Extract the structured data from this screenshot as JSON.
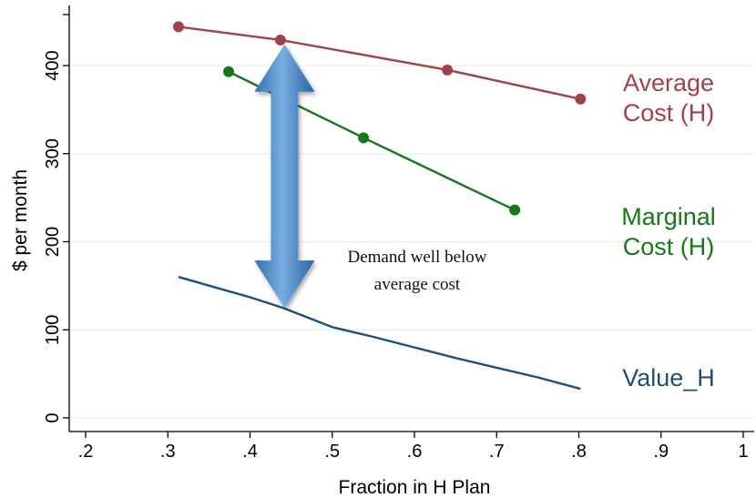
{
  "chart_data": {
    "type": "line",
    "xlabel": "Fraction in H Plan",
    "ylabel": "$ per month",
    "xlim": [
      0.2,
      1.0
    ],
    "ylim": [
      0,
      450
    ],
    "x_ticks": [
      0.2,
      0.3,
      0.4,
      0.5,
      0.6,
      0.7,
      0.8,
      0.9,
      1.0
    ],
    "x_tick_labels": [
      ".2",
      ".3",
      ".4",
      ".5",
      ".6",
      ".7",
      ".8",
      ".9",
      "1"
    ],
    "y_ticks": [
      0,
      100,
      200,
      300,
      400
    ],
    "y_tick_labels": [
      "0",
      "100",
      "200",
      "300",
      "400"
    ],
    "grid": "horizontal",
    "series": [
      {
        "name": "Average Cost (H)",
        "label_lines": [
          "Average",
          "Cost (H)"
        ],
        "color": "#a0424a",
        "markers": true,
        "x": [
          0.313,
          0.437,
          0.64,
          0.802
        ],
        "y": [
          444,
          429,
          395,
          362
        ]
      },
      {
        "name": "Marginal Cost (H)",
        "label_lines": [
          "Marginal",
          "Cost (H)"
        ],
        "color": "#187818",
        "markers": true,
        "x": [
          0.374,
          0.538,
          0.722
        ],
        "y": [
          393,
          318,
          236
        ]
      },
      {
        "name": "Value_H",
        "label_lines": [
          "Value_H"
        ],
        "color": "#1f4e79",
        "markers": false,
        "x": [
          0.313,
          0.4,
          0.44,
          0.5,
          0.55,
          0.6,
          0.65,
          0.7,
          0.75,
          0.802
        ],
        "y": [
          160,
          137,
          125,
          103,
          92,
          80,
          68,
          57,
          46,
          33
        ]
      }
    ],
    "annotation": {
      "lines": [
        "Demand well below",
        "average cost"
      ],
      "arrow": {
        "x": 0.442,
        "y_top": 424,
        "y_bottom": 125,
        "direction": "both"
      }
    }
  }
}
